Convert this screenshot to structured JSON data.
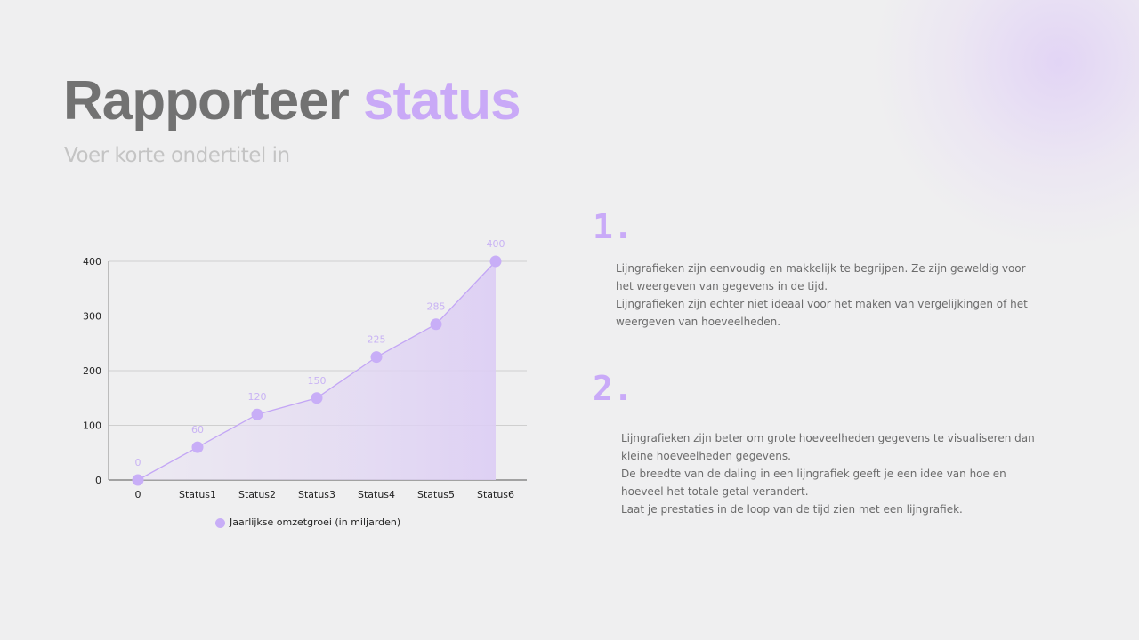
{
  "header": {
    "title_main": "Rapporteer",
    "title_accent": "status",
    "subtitle": "Voer korte ondertitel in"
  },
  "colors": {
    "accent": "#c9aaf8",
    "title_gray": "#727272",
    "subtitle_gray": "#c4c4c4",
    "background": "#efeff0",
    "line": "#c3a6f5"
  },
  "chart_data": {
    "type": "line",
    "title": "",
    "categories": [
      "0",
      "Status1",
      "Status2",
      "Status3",
      "Status4",
      "Status5",
      "Status6"
    ],
    "series": [
      {
        "name": "Jaarlijkse omzetgroei (in miljarden)",
        "values": [
          0,
          60,
          120,
          150,
          225,
          285,
          400
        ]
      }
    ],
    "data_labels": [
      "0",
      "60",
      "120",
      "150",
      "225",
      "285",
      "400"
    ],
    "xlabel": "",
    "ylabel": "",
    "ylim": [
      0,
      400
    ],
    "yticks": [
      "0",
      "100",
      "200",
      "300",
      "400"
    ],
    "grid": true,
    "area_fill": true,
    "legend_position": "bottom"
  },
  "sections": [
    {
      "number": "1.",
      "lines": [
        "Lijngrafieken zijn eenvoudig en makkelijk te begrijpen. Ze zijn geweldig voor het weergeven van gegevens in de tijd.",
        "Lijngrafieken zijn echter niet ideaal voor het maken van vergelijkingen of het weergeven van hoeveelheden."
      ]
    },
    {
      "number": "2.",
      "lines": [
        "Lijngrafieken zijn beter om grote hoeveelheden gegevens te visualiseren dan kleine hoeveelheden gegevens.",
        "De breedte van de daling in een lijngrafiek geeft je een idee van hoe en hoeveel het totale getal verandert.",
        "Laat je prestaties in de loop van de tijd zien met een lijngrafiek."
      ]
    }
  ]
}
